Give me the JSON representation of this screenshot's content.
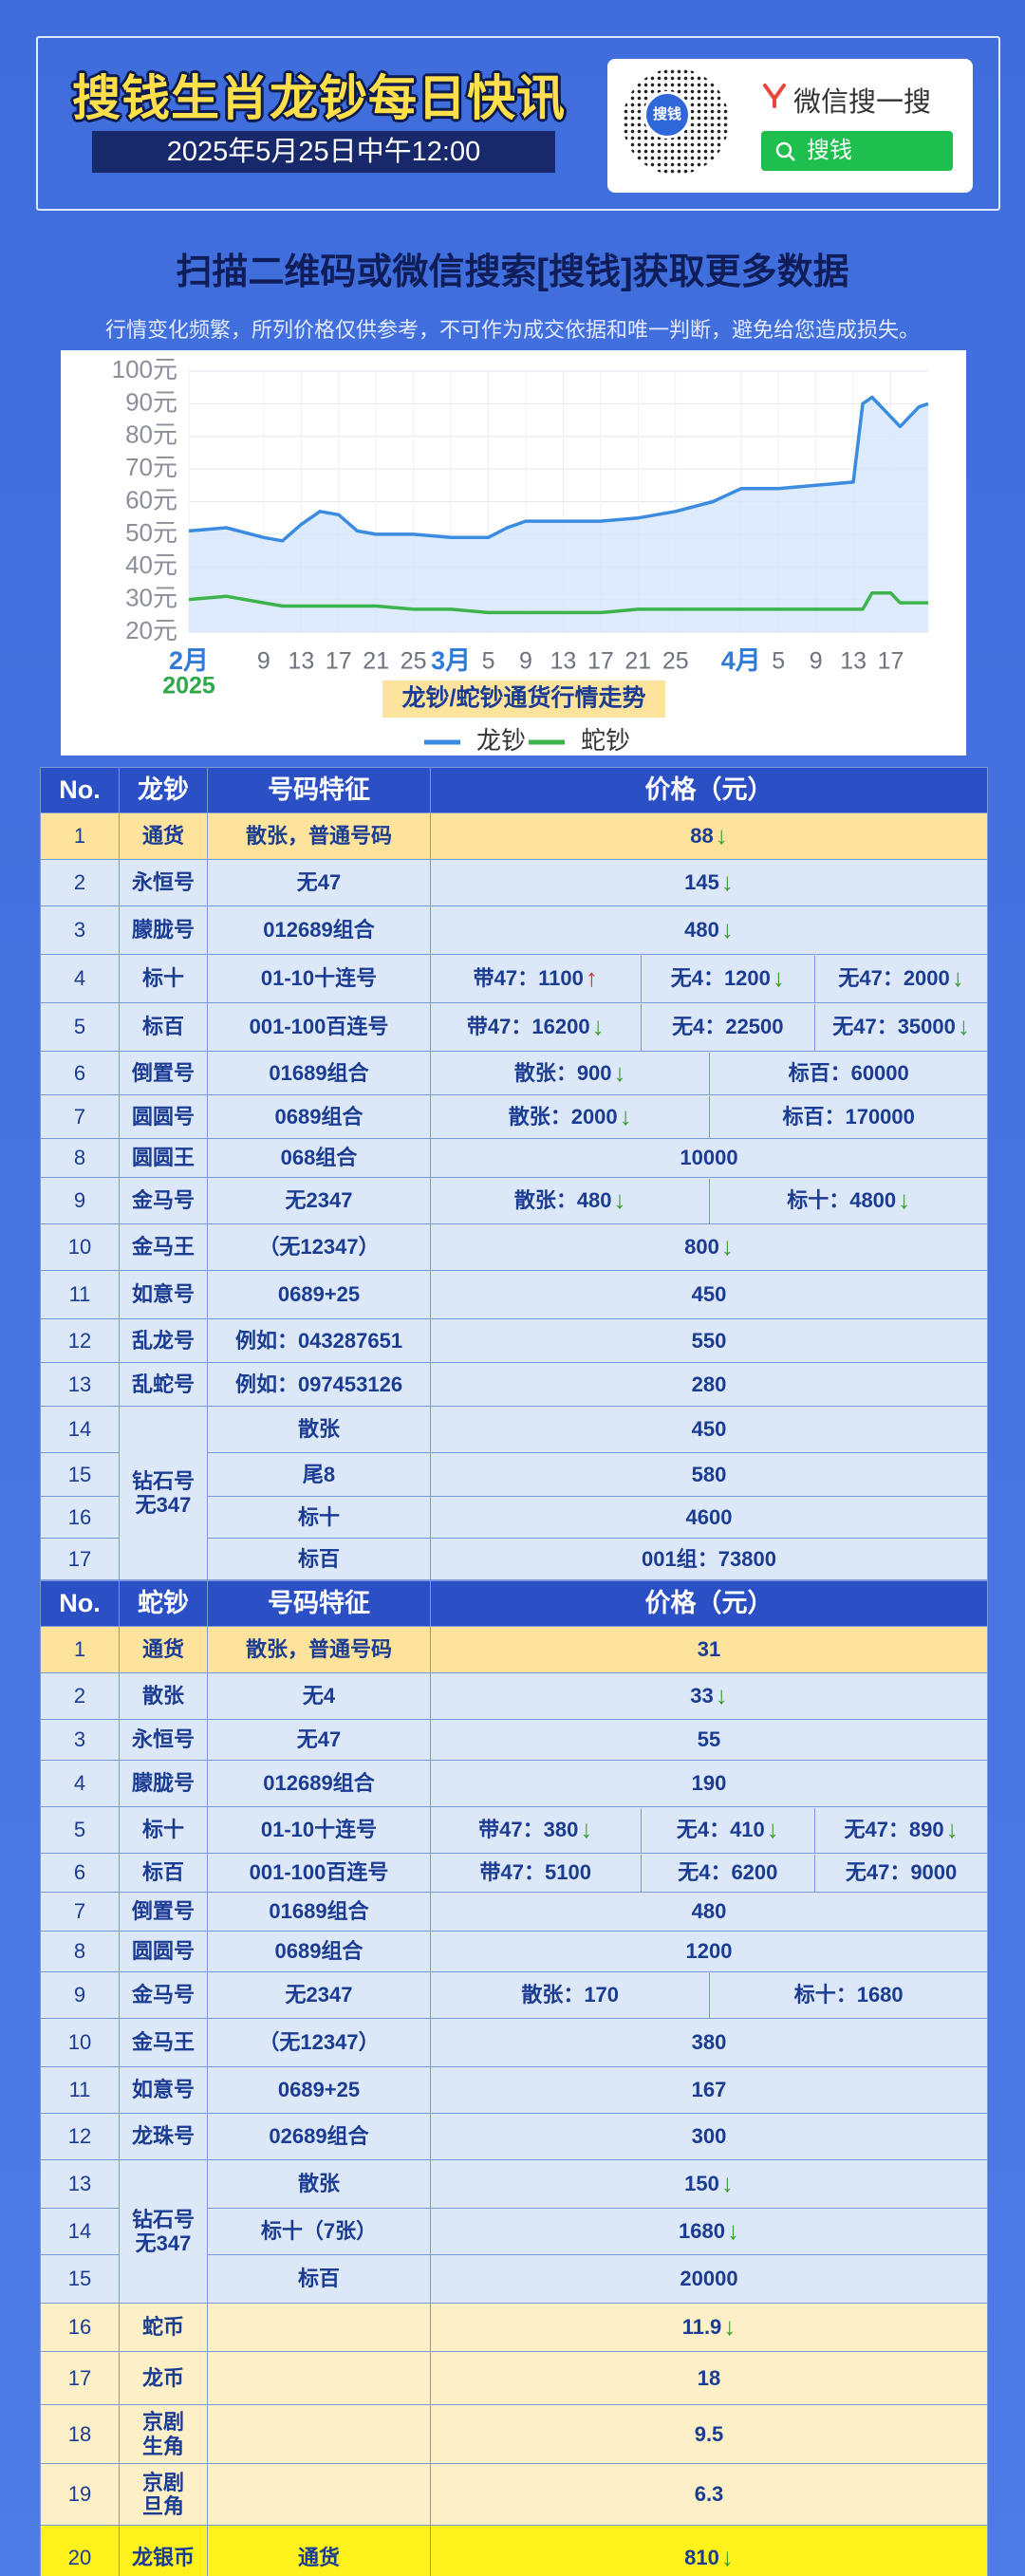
{
  "header": {
    "title": "搜钱生肖龙钞每日快讯",
    "datetime": "2025年5月25日中午12:00",
    "qr_label": "搜钱",
    "search_brand": "微信搜一搜",
    "search_query": "搜钱"
  },
  "subtitle": "扫描二维码或微信搜索[搜钱]获取更多数据",
  "disclaimer": "行情变化频繁，所列价格仅供参考，不可作为成交依据和唯一判断，避免给您造成损失。",
  "chart_data": {
    "type": "line",
    "title": "龙钞/蛇钞通货行情走势",
    "x": [
      "2025-02-01",
      "2025-02-05",
      "2025-02-09",
      "2025-02-11",
      "2025-02-13",
      "2025-02-15",
      "2025-02-17",
      "2025-02-19",
      "2025-02-21",
      "2025-02-25",
      "2025-03-01",
      "2025-03-05",
      "2025-03-07",
      "2025-03-09",
      "2025-03-13",
      "2025-03-17",
      "2025-03-21",
      "2025-03-25",
      "2025-03-29",
      "2025-04-01",
      "2025-04-05",
      "2025-04-09",
      "2025-04-13",
      "2025-04-14",
      "2025-04-15",
      "2025-04-17",
      "2025-04-18",
      "2025-04-20",
      "2025-04-21"
    ],
    "series": [
      {
        "name": "龙钞",
        "color": "#3b8be0",
        "fill": "#d4e6fb",
        "values": [
          51,
          52,
          49,
          48,
          53,
          57,
          56,
          51,
          50,
          50,
          49,
          49,
          52,
          54,
          54,
          54,
          55,
          57,
          60,
          64,
          64,
          65,
          66,
          90,
          92,
          86,
          83,
          89,
          90
        ]
      },
      {
        "name": "蛇钞",
        "color": "#3cb44b",
        "values": [
          30,
          31,
          29,
          28,
          28,
          28,
          28,
          28,
          28,
          27,
          27,
          26,
          26,
          26,
          26,
          26,
          27,
          27,
          27,
          27,
          27,
          27,
          27,
          27,
          32,
          32,
          29,
          29,
          29
        ]
      }
    ],
    "xlim": [
      "2025-02-01",
      "2025-04-21"
    ],
    "xticks": [
      {
        "value": "2025-02-01",
        "label": "2月"
      },
      {
        "value": "2025-02-09",
        "label": "9"
      },
      {
        "value": "2025-02-13",
        "label": "13"
      },
      {
        "value": "2025-02-17",
        "label": "17"
      },
      {
        "value": "2025-02-21",
        "label": "21"
      },
      {
        "value": "2025-02-25",
        "label": "25"
      },
      {
        "value": "2025-03-01",
        "label": "3月"
      },
      {
        "value": "2025-03-05",
        "label": "5"
      },
      {
        "value": "2025-03-09",
        "label": "9"
      },
      {
        "value": "2025-03-13",
        "label": "13"
      },
      {
        "value": "2025-03-17",
        "label": "17"
      },
      {
        "value": "2025-03-21",
        "label": "21"
      },
      {
        "value": "2025-03-25",
        "label": "25"
      },
      {
        "value": "2025-04-01",
        "label": "4月"
      },
      {
        "value": "2025-04-05",
        "label": "5"
      },
      {
        "value": "2025-04-09",
        "label": "9"
      },
      {
        "value": "2025-04-13",
        "label": "13"
      },
      {
        "value": "2025-04-17",
        "label": "17"
      }
    ],
    "year_label": "2025",
    "ylim": [
      20,
      100
    ],
    "yticks": [
      {
        "value": 20,
        "label": "20元"
      },
      {
        "value": 30,
        "label": "30元"
      },
      {
        "value": 40,
        "label": "40元"
      },
      {
        "value": 50,
        "label": "50元"
      },
      {
        "value": 60,
        "label": "60元"
      },
      {
        "value": 70,
        "label": "70元"
      },
      {
        "value": 80,
        "label": "80元"
      },
      {
        "value": 90,
        "label": "90元"
      },
      {
        "value": 100,
        "label": "100元"
      }
    ],
    "grid": true,
    "legend": "bottom"
  },
  "tables": [
    {
      "header": [
        "No.",
        "龙钞",
        "号码特征",
        "价格（元）"
      ],
      "rows": [
        {
          "no": "1",
          "name": "通货",
          "feature": "散张，普通号码",
          "prices": [
            {
              "text": "88",
              "arrow": "↓"
            }
          ],
          "bg": "#fde39c"
        },
        {
          "no": "2",
          "name": "永恒号",
          "feature": "无47",
          "prices": [
            {
              "text": "145",
              "arrow": "↓"
            }
          ]
        },
        {
          "no": "3",
          "name": "朦胧号",
          "feature": "012689组合",
          "prices": [
            {
              "text": "480",
              "arrow": "↓"
            }
          ]
        },
        {
          "no": "4",
          "name": "标十",
          "feature": "01-10十连号",
          "prices": [
            {
              "text": "带47：1100",
              "arrow": "↑"
            },
            {
              "text": "无4：1200",
              "arrow": "↓"
            },
            {
              "text": "无47：2000",
              "arrow": "↓"
            }
          ]
        },
        {
          "no": "5",
          "name": "标百",
          "feature": "001-100百连号",
          "prices": [
            {
              "text": "带47：16200",
              "arrow": "↓"
            },
            {
              "text": "无4：22500"
            },
            {
              "text": "无47：35000",
              "arrow": "↓"
            }
          ]
        },
        {
          "no": "6",
          "name": "倒置号",
          "feature": "01689组合",
          "prices": [
            {
              "text": "散张：900",
              "arrow": "↓"
            },
            {
              "text": "标百：60000"
            }
          ]
        },
        {
          "no": "7",
          "name": "圆圆号",
          "feature": "0689组合",
          "prices": [
            {
              "text": "散张：2000",
              "arrow": "↓"
            },
            {
              "text": "标百：170000"
            }
          ]
        },
        {
          "no": "8",
          "name": "圆圆王",
          "feature": "068组合",
          "prices": [
            {
              "text": "10000"
            }
          ]
        },
        {
          "no": "9",
          "name": "金马号",
          "feature": "无2347",
          "prices": [
            {
              "text": "散张：480",
              "arrow": "↓"
            },
            {
              "text": "标十：4800",
              "arrow": "↓"
            }
          ]
        },
        {
          "no": "10",
          "name": "金马王",
          "feature": "（无12347）",
          "prices": [
            {
              "text": "800",
              "arrow": "↓"
            }
          ]
        },
        {
          "no": "11",
          "name": "如意号",
          "feature": "0689+25",
          "prices": [
            {
              "text": "450"
            }
          ]
        },
        {
          "no": "12",
          "name": "乱龙号",
          "feature": "例如：043287651",
          "prices": [
            {
              "text": "550"
            }
          ]
        },
        {
          "no": "13",
          "name": "乱蛇号",
          "feature": "例如：097453126",
          "prices": [
            {
              "text": "280"
            }
          ]
        },
        {
          "no": "14",
          "name": "钻石号\n无347",
          "feature": "散张",
          "prices": [
            {
              "text": "450"
            }
          ]
        },
        {
          "no": "15",
          "feature": "尾8",
          "prices": [
            {
              "text": "580"
            }
          ]
        },
        {
          "no": "16",
          "feature": "标十",
          "prices": [
            {
              "text": "4600"
            }
          ]
        },
        {
          "no": "17",
          "feature": "标百",
          "prices": [
            {
              "text": "001组：73800"
            }
          ]
        }
      ]
    },
    {
      "header": [
        "No.",
        "蛇钞",
        "号码特征",
        "价格（元）"
      ],
      "rows": [
        {
          "no": "1",
          "name": "通货",
          "feature": "散张，普通号码",
          "prices": [
            {
              "text": "31"
            }
          ],
          "bg": "#fde39c"
        },
        {
          "no": "2",
          "name": "散张",
          "feature": "无4",
          "prices": [
            {
              "text": "33",
              "arrow": "↓"
            }
          ]
        },
        {
          "no": "3",
          "name": "永恒号",
          "feature": "无47",
          "prices": [
            {
              "text": "55"
            }
          ]
        },
        {
          "no": "4",
          "name": "朦胧号",
          "feature": "012689组合",
          "prices": [
            {
              "text": "190"
            }
          ]
        },
        {
          "no": "5",
          "name": "标十",
          "feature": "01-10十连号",
          "prices": [
            {
              "text": "带47：380",
              "arrow": "↓"
            },
            {
              "text": "无4：410",
              "arrow": "↓"
            },
            {
              "text": "无47：890",
              "arrow": "↓"
            }
          ]
        },
        {
          "no": "6",
          "name": "标百",
          "feature": "001-100百连号",
          "prices": [
            {
              "text": "带47：5100"
            },
            {
              "text": "无4：6200"
            },
            {
              "text": "无47：9000"
            }
          ]
        },
        {
          "no": "7",
          "name": "倒置号",
          "feature": "01689组合",
          "prices": [
            {
              "text": "480"
            }
          ]
        },
        {
          "no": "8",
          "name": "圆圆号",
          "feature": "0689组合",
          "prices": [
            {
              "text": "1200"
            }
          ]
        },
        {
          "no": "9",
          "name": "金马号",
          "feature": "无2347",
          "prices": [
            {
              "text": "散张：170"
            },
            {
              "text": "标十：1680"
            }
          ]
        },
        {
          "no": "10",
          "name": "金马王",
          "feature": "（无12347）",
          "prices": [
            {
              "text": "380"
            }
          ]
        },
        {
          "no": "11",
          "name": "如意号",
          "feature": "0689+25",
          "prices": [
            {
              "text": "167"
            }
          ]
        },
        {
          "no": "12",
          "name": "龙珠号",
          "feature": "02689组合",
          "prices": [
            {
              "text": "300"
            }
          ]
        },
        {
          "no": "13",
          "name": "钻石号\n无347",
          "feature": "散张",
          "prices": [
            {
              "text": "150",
              "arrow": "↓"
            }
          ]
        },
        {
          "no": "14",
          "feature": "标十（7张）",
          "prices": [
            {
              "text": "1680",
              "arrow": "↓"
            }
          ]
        },
        {
          "no": "15",
          "feature": "标百",
          "prices": [
            {
              "text": "20000"
            }
          ]
        },
        {
          "no": "16",
          "name": "蛇币",
          "prices": [
            {
              "text": "11.9",
              "arrow": "↓"
            }
          ],
          "bg": "#fdf0c6"
        },
        {
          "no": "17",
          "name": "龙币",
          "prices": [
            {
              "text": "18"
            }
          ],
          "bg": "#fdf0c6"
        },
        {
          "no": "18",
          "name": "京剧\n生角",
          "prices": [
            {
              "text": "9.5"
            }
          ],
          "bg": "#fdf0c6"
        },
        {
          "no": "19",
          "name": "京剧\n旦角",
          "prices": [
            {
              "text": "6.3"
            }
          ],
          "bg": "#fdf0c6"
        },
        {
          "no": "20",
          "name": "龙银币",
          "feature": "通货",
          "prices": [
            {
              "text": "810",
              "arrow": "↓"
            }
          ],
          "bg": "#fff21c"
        }
      ]
    }
  ]
}
